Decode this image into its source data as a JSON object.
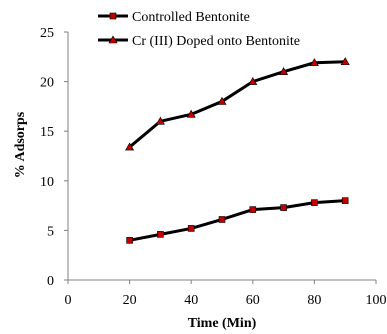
{
  "chart_data": {
    "type": "line",
    "xlabel": "Time (Min)",
    "ylabel": "% Adsorps",
    "xlim": [
      0,
      100
    ],
    "ylim": [
      0,
      25
    ],
    "xticks": [
      0,
      20,
      40,
      60,
      80,
      100
    ],
    "yticks": [
      0,
      5,
      10,
      15,
      20,
      25
    ],
    "grid": false,
    "legend_position": "top",
    "series": [
      {
        "name": "Controlled Bentonite",
        "marker": "square",
        "color": "#000000",
        "marker_color": "#c00000",
        "x": [
          20,
          30,
          40,
          50,
          60,
          70,
          80,
          90
        ],
        "y": [
          4.0,
          4.6,
          5.2,
          6.1,
          7.1,
          7.3,
          7.8,
          8.0
        ]
      },
      {
        "name": "Cr (III) Doped onto Bentonite",
        "marker": "triangle",
        "color": "#000000",
        "marker_color": "#c00000",
        "x": [
          20,
          30,
          40,
          50,
          60,
          70,
          80,
          90
        ],
        "y": [
          13.4,
          16.0,
          16.7,
          18.0,
          20.0,
          21.0,
          21.9,
          22.0
        ]
      }
    ]
  }
}
